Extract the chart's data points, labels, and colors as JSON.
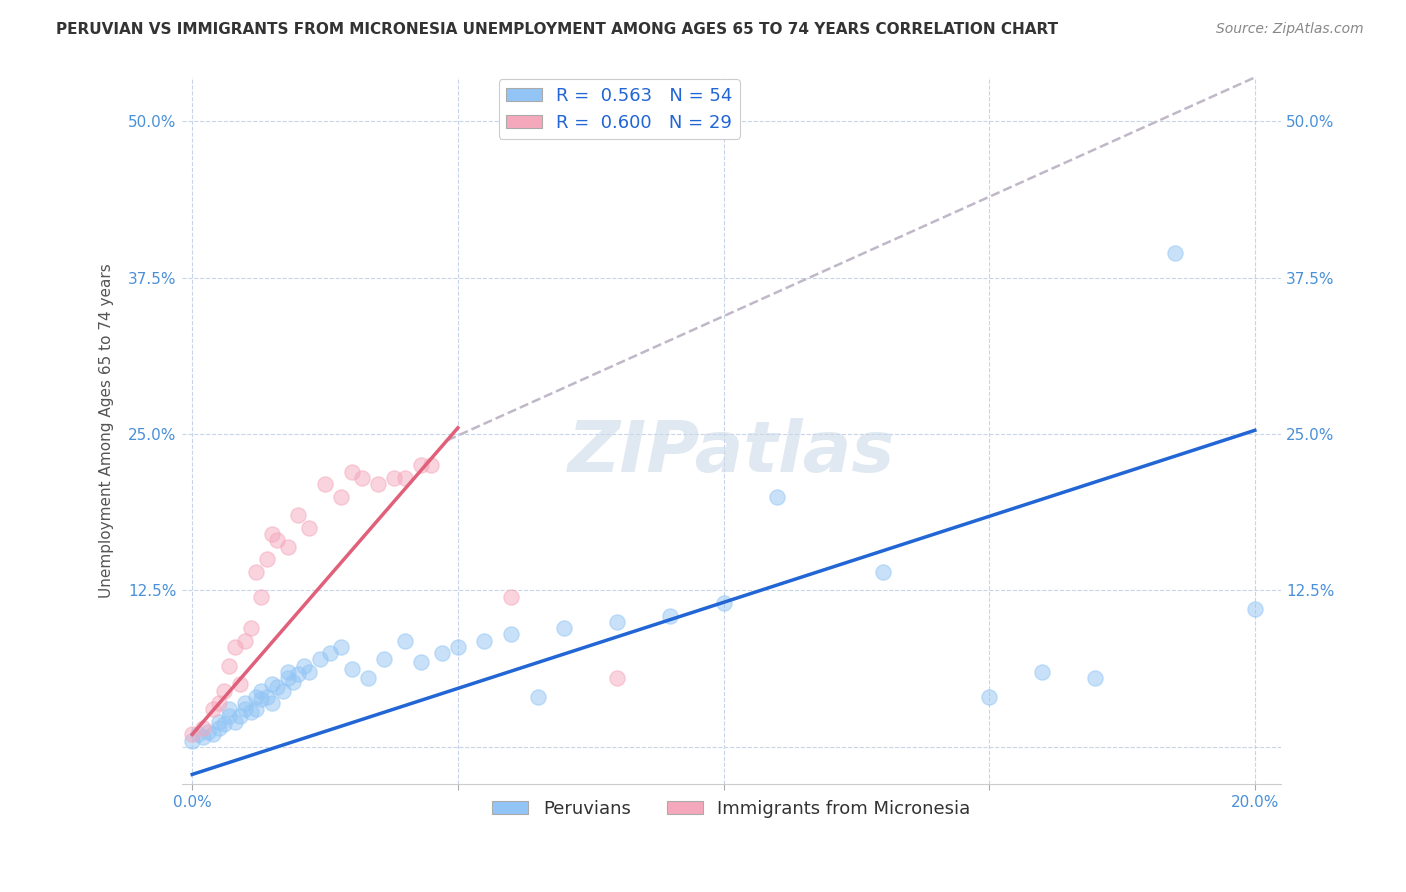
{
  "title": "PERUVIAN VS IMMIGRANTS FROM MICRONESIA UNEMPLOYMENT AMONG AGES 65 TO 74 YEARS CORRELATION CHART",
  "source": "Source: ZipAtlas.com",
  "ylabel": "Unemployment Among Ages 65 to 74 years",
  "xlim": [
    -0.002,
    0.205
  ],
  "ylim": [
    -0.03,
    0.535
  ],
  "xticks": [
    0.0,
    0.05,
    0.1,
    0.15,
    0.2
  ],
  "xticklabels": [
    "0.0%",
    "",
    "",
    "",
    "20.0%"
  ],
  "yticks": [
    0.0,
    0.125,
    0.25,
    0.375,
    0.5
  ],
  "yticklabels": [
    "",
    "12.5%",
    "25.0%",
    "37.5%",
    "50.0%"
  ],
  "legend_r1": "R =  0.563   N = 54",
  "legend_r2": "R =  0.600   N = 29",
  "color_peruvian": "#92c5f5",
  "color_micronesia": "#f5a8bc",
  "color_line_peruvian": "#2166d4",
  "color_line_micronesia": "#e0607a",
  "color_dashed": "#c0b8c8",
  "watermark": "ZIPatlas",
  "background_color": "#ffffff",
  "grid_color": "#c8d4e8",
  "peruvian_x": [
    0.0,
    0.001,
    0.002,
    0.003,
    0.004,
    0.005,
    0.005,
    0.006,
    0.007,
    0.007,
    0.008,
    0.009,
    0.01,
    0.01,
    0.011,
    0.012,
    0.012,
    0.013,
    0.013,
    0.014,
    0.015,
    0.015,
    0.016,
    0.017,
    0.018,
    0.018,
    0.019,
    0.02,
    0.021,
    0.022,
    0.024,
    0.026,
    0.028,
    0.03,
    0.033,
    0.036,
    0.04,
    0.043,
    0.047,
    0.05,
    0.055,
    0.06,
    0.065,
    0.07,
    0.08,
    0.09,
    0.1,
    0.11,
    0.13,
    0.15,
    0.16,
    0.17,
    0.185,
    0.2
  ],
  "peruvian_y": [
    0.005,
    0.01,
    0.008,
    0.012,
    0.01,
    0.015,
    0.02,
    0.018,
    0.025,
    0.03,
    0.02,
    0.025,
    0.03,
    0.035,
    0.028,
    0.03,
    0.04,
    0.038,
    0.045,
    0.04,
    0.035,
    0.05,
    0.048,
    0.045,
    0.055,
    0.06,
    0.052,
    0.058,
    0.065,
    0.06,
    0.07,
    0.075,
    0.08,
    0.062,
    0.055,
    0.07,
    0.085,
    0.068,
    0.075,
    0.08,
    0.085,
    0.09,
    0.04,
    0.095,
    0.1,
    0.105,
    0.115,
    0.2,
    0.14,
    0.04,
    0.06,
    0.055,
    0.395,
    0.11
  ],
  "micronesia_x": [
    0.0,
    0.002,
    0.004,
    0.005,
    0.006,
    0.007,
    0.008,
    0.009,
    0.01,
    0.011,
    0.012,
    0.013,
    0.014,
    0.015,
    0.016,
    0.018,
    0.02,
    0.022,
    0.025,
    0.028,
    0.03,
    0.032,
    0.035,
    0.038,
    0.04,
    0.043,
    0.045,
    0.06,
    0.08
  ],
  "micronesia_y": [
    0.01,
    0.015,
    0.03,
    0.035,
    0.045,
    0.065,
    0.08,
    0.05,
    0.085,
    0.095,
    0.14,
    0.12,
    0.15,
    0.17,
    0.165,
    0.16,
    0.185,
    0.175,
    0.21,
    0.2,
    0.22,
    0.215,
    0.21,
    0.215,
    0.215,
    0.225,
    0.225,
    0.12,
    0.055
  ],
  "blue_line_x0": 0.0,
  "blue_line_y0": -0.022,
  "blue_line_x1": 0.2,
  "blue_line_y1": 0.253,
  "pink_line_x0": 0.0,
  "pink_line_y0": 0.01,
  "pink_line_x1": 0.05,
  "pink_line_y1": 0.255,
  "dash_line_x0": 0.048,
  "dash_line_y0": 0.245,
  "dash_line_x1": 0.2,
  "dash_line_y1": 0.535,
  "title_fontsize": 11,
  "axis_label_fontsize": 11,
  "tick_fontsize": 11,
  "legend_fontsize": 13,
  "source_fontsize": 10,
  "watermark_fontsize": 52,
  "watermark_color": "#c8d8e8",
  "watermark_alpha": 0.55
}
